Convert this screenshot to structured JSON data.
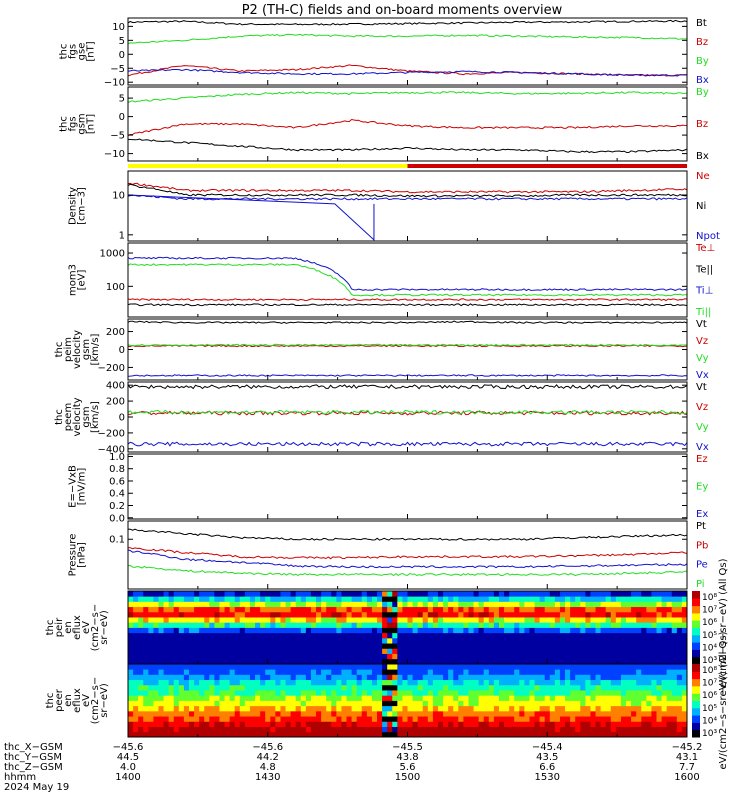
{
  "title": "P2 (TH-C) fields and on-board moments overview",
  "colors": {
    "black": "#000000",
    "red": "#cc0000",
    "green": "#22dd22",
    "blue": "#1111cc",
    "yellow": "#ffff00"
  },
  "chart_data": [
    {
      "id": "p1",
      "type": "line",
      "ylabel": [
        "thc",
        "fgs",
        "gse",
        "[nT]"
      ],
      "ylim": [
        -11,
        13
      ],
      "ticks": [
        10,
        5,
        0,
        -5,
        -10
      ],
      "tick_labels": [
        "10",
        "5",
        "0",
        "−5",
        "−10"
      ],
      "series": [
        {
          "name": "Bt",
          "color": "black",
          "base": [
            11.5,
            11.8,
            10.8,
            10.7,
            10.8,
            11.0,
            11.2,
            11.5,
            11.6,
            11.8,
            11.9
          ]
        },
        {
          "name": "Bz",
          "color": "red",
          "base": [
            -7.5,
            -4,
            -6,
            -5.5,
            -4,
            -6,
            -7,
            -6.5,
            -7,
            -7.5,
            -7.5
          ]
        },
        {
          "name": "By",
          "color": "green",
          "base": [
            4,
            5,
            6.5,
            7,
            6.5,
            6.5,
            6.8,
            6.5,
            6.2,
            6,
            5.5
          ]
        },
        {
          "name": "Bx",
          "color": "blue",
          "base": [
            -6,
            -5.5,
            -6.5,
            -7,
            -7,
            -6.5,
            -6.2,
            -6.5,
            -7,
            -7.5,
            -7.5
          ]
        }
      ]
    },
    {
      "id": "p2",
      "type": "line",
      "ylabel": [
        "thc",
        "fgs",
        "gsm",
        "[nT]"
      ],
      "ylim": [
        -12,
        8
      ],
      "ticks": [
        5,
        0,
        -5,
        -10
      ],
      "tick_labels": [
        "5",
        "0",
        "−5",
        "−10"
      ],
      "series": [
        {
          "name": "By",
          "color": "green",
          "base": [
            4,
            5,
            6,
            6.5,
            6.2,
            6.5,
            6.5,
            6.2,
            6.3,
            6.5,
            6.2
          ]
        },
        {
          "name": "Bz",
          "color": "red",
          "base": [
            -5,
            -2,
            -2,
            -3,
            -1,
            -2.5,
            -3,
            -3,
            -3,
            -2.5,
            -2.5
          ]
        },
        {
          "name": "Bx",
          "color": "black",
          "base": [
            -6,
            -7,
            -8,
            -9,
            -9,
            -8.5,
            -9,
            -9,
            -9.5,
            -9.5,
            -9
          ]
        }
      ]
    },
    {
      "id": "p3",
      "type": "line",
      "log": true,
      "ylabel": [
        "Density",
        "[cm−3]"
      ],
      "ylim": [
        0.7,
        40
      ],
      "ticks": [
        10,
        1
      ],
      "tick_labels": [
        "10",
        "1"
      ],
      "series": [
        {
          "name": "Ne",
          "color": "red",
          "base": [
            20,
            13,
            13,
            13,
            13,
            12,
            12,
            12,
            12,
            13,
            14
          ]
        },
        {
          "name": "Ni",
          "color": "black",
          "base": [
            18,
            10,
            10,
            10,
            10,
            9.5,
            9.5,
            9.5,
            10,
            10,
            10
          ]
        },
        {
          "name": "Npot",
          "color": "blue",
          "base": [
            10,
            8,
            8,
            8,
            8,
            8,
            8,
            8,
            8,
            8,
            8
          ]
        }
      ]
    },
    {
      "id": "p4",
      "type": "line",
      "log": true,
      "ylabel": [
        "mom3",
        "[eV]"
      ],
      "ylim": [
        12,
        2000
      ],
      "ticks": [
        1000,
        100
      ],
      "tick_labels": [
        "1000",
        "100"
      ],
      "series": [
        {
          "name": "Te⊥",
          "color": "red",
          "base": [
            40,
            40,
            40,
            40,
            40,
            40,
            40,
            40,
            40,
            40,
            40
          ]
        },
        {
          "name": "Te||",
          "color": "black",
          "base": [
            28,
            28,
            28,
            28,
            28,
            28,
            28,
            28,
            28,
            28,
            28
          ]
        },
        {
          "name": "Ti⊥",
          "color": "blue",
          "base": [
            700,
            700,
            700,
            700,
            80,
            80,
            80,
            80,
            80,
            80,
            80
          ]
        },
        {
          "name": "Ti||",
          "color": "green",
          "base": [
            450,
            450,
            450,
            450,
            55,
            55,
            55,
            55,
            55,
            55,
            55
          ]
        }
      ]
    },
    {
      "id": "p5",
      "type": "line",
      "ylabel": [
        "thc",
        "peim",
        "velocity",
        "gsm",
        "[km/s]"
      ],
      "ylim": [
        -340,
        340
      ],
      "ticks": [
        200,
        0,
        -200
      ],
      "tick_labels": [
        "200",
        "0",
        "−200"
      ],
      "series": [
        {
          "name": "Vt",
          "color": "black",
          "base": [
            310,
            300,
            300,
            300,
            300,
            300,
            310,
            300,
            300,
            300,
            300
          ]
        },
        {
          "name": "Vz",
          "color": "red",
          "base": [
            40,
            40,
            40,
            40,
            40,
            40,
            40,
            40,
            40,
            40,
            40
          ]
        },
        {
          "name": "Vy",
          "color": "green",
          "base": [
            50,
            50,
            50,
            50,
            50,
            50,
            50,
            50,
            50,
            50,
            50
          ]
        },
        {
          "name": "Vx",
          "color": "blue",
          "base": [
            -290,
            -290,
            -290,
            -290,
            -290,
            -290,
            -290,
            -290,
            -290,
            -290,
            -290
          ]
        }
      ]
    },
    {
      "id": "p6",
      "type": "line",
      "ylabel": [
        "thc",
        "peem",
        "velocity",
        "gsm",
        "[km/s]"
      ],
      "ylim": [
        -440,
        440
      ],
      "ticks": [
        400,
        200,
        0,
        -200,
        -400
      ],
      "tick_labels": [
        "400",
        "200",
        "0",
        "−200",
        "−400"
      ],
      "series": [
        {
          "name": "Vt",
          "color": "black",
          "base": [
            380,
            380,
            380,
            380,
            380,
            380,
            380,
            380,
            380,
            380,
            380
          ]
        },
        {
          "name": "Vz",
          "color": "red",
          "base": [
            50,
            50,
            50,
            50,
            50,
            50,
            50,
            50,
            50,
            50,
            50
          ]
        },
        {
          "name": "Vy",
          "color": "green",
          "base": [
            60,
            60,
            60,
            60,
            60,
            60,
            60,
            60,
            60,
            60,
            60
          ]
        },
        {
          "name": "Vx",
          "color": "blue",
          "base": [
            -340,
            -340,
            -340,
            -340,
            -340,
            -340,
            -340,
            -340,
            -340,
            -340,
            -340
          ]
        }
      ]
    },
    {
      "id": "p7",
      "type": "line",
      "ylabel": [
        "E=−VxB",
        "[mV/m]"
      ],
      "ylim": [
        -0.02,
        1.04
      ],
      "ticks": [
        1.0,
        0.8,
        0.6,
        0.4,
        0.2,
        0.0
      ],
      "tick_labels": [
        "1.0",
        "0.8",
        "0.6",
        "0.4",
        "0.2",
        "0.0"
      ],
      "series": [
        {
          "name": "Ez",
          "color": "red",
          "base": []
        },
        {
          "name": "Ey",
          "color": "green",
          "base": []
        },
        {
          "name": "Ex",
          "color": "blue",
          "base": []
        }
      ]
    },
    {
      "id": "p8",
      "type": "line",
      "log": true,
      "ylabel": [
        "Pressure",
        "[nPa]"
      ],
      "ylim": [
        0.005,
        0.3
      ],
      "ticks": [
        0.1
      ],
      "tick_labels": [
        "0.1"
      ],
      "series": [
        {
          "name": "Pt",
          "color": "black",
          "base": [
            0.18,
            0.14,
            0.11,
            0.1,
            0.1,
            0.1,
            0.1,
            0.1,
            0.11,
            0.12,
            0.13
          ]
        },
        {
          "name": "Pb",
          "color": "red",
          "base": [
            0.06,
            0.045,
            0.035,
            0.033,
            0.033,
            0.035,
            0.035,
            0.035,
            0.037,
            0.04,
            0.045
          ]
        },
        {
          "name": "Pe",
          "color": "blue",
          "base": [
            0.05,
            0.03,
            0.025,
            0.02,
            0.019,
            0.019,
            0.019,
            0.019,
            0.02,
            0.021,
            0.022
          ]
        },
        {
          "name": "Pi",
          "color": "green",
          "base": [
            0.02,
            0.015,
            0.013,
            0.012,
            0.012,
            0.012,
            0.012,
            0.012,
            0.012,
            0.013,
            0.014
          ]
        }
      ]
    },
    {
      "id": "s1",
      "type": "heatmap",
      "ylabel": [
        "thc",
        "peir",
        "en",
        "eflux",
        "eV",
        "(cm2−s−",
        "sr−eV)"
      ],
      "ylim": [
        6,
        40000
      ],
      "ticks": [
        10000,
        1000,
        100,
        10
      ],
      "tick_labels": [
        "10000",
        "1000",
        "100",
        "10"
      ],
      "colorbar_labels": [
        "10⁸",
        "10⁷",
        "10⁶",
        "10⁵",
        "10⁴",
        "10³"
      ],
      "zlabel": "eV/(cm2−s−sr−eV) (All Qs)"
    },
    {
      "id": "s2",
      "type": "heatmap",
      "ylabel": [
        "thc",
        "peer",
        "en",
        "eflux",
        "eV",
        "(cm2−s−",
        "sr−eV)"
      ],
      "ylim": [
        6,
        40000
      ],
      "ticks": [
        10000,
        1000,
        100,
        10
      ],
      "tick_labels": [
        "10000",
        "1000",
        "100",
        "10"
      ],
      "colorbar_labels": [
        "10⁸",
        "10⁷",
        "10⁶",
        "10⁵",
        "10⁴",
        "10³"
      ],
      "zlabel": "eV/(cm2−s−sr−eV) (All Qs)"
    }
  ],
  "mode_bar": {
    "segments": [
      {
        "from": 0,
        "to": 0.5,
        "color": "yellow"
      },
      {
        "from": 0.5,
        "to": 1,
        "color": "red"
      }
    ]
  },
  "xaxis": {
    "ticks": [
      0,
      0.25,
      0.5,
      0.75,
      1
    ],
    "rows": [
      {
        "label": "thc_X−GSM",
        "values": [
          "−45.6",
          "−45.6",
          "−45.5",
          "−45.4",
          "−45.2"
        ]
      },
      {
        "label": "thc_Y−GSM",
        "values": [
          "44.5",
          "44.2",
          "43.8",
          "43.5",
          "43.1"
        ]
      },
      {
        "label": "thc_Z−GSM",
        "values": [
          "4.0",
          "4.8",
          "5.6",
          "6.6",
          "7.7"
        ]
      },
      {
        "label": "hhmm",
        "values": [
          "1400",
          "1430",
          "1500",
          "1530",
          "1600"
        ]
      }
    ],
    "date": "2024 May 19"
  }
}
